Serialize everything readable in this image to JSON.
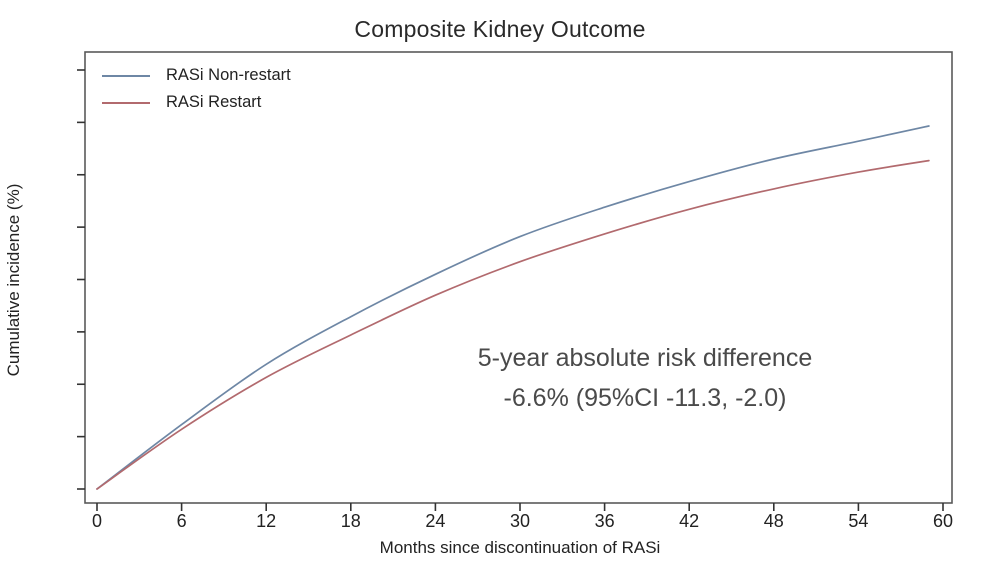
{
  "title": "Composite Kidney Outcome",
  "colors": {
    "non_restart": "#6e87a5",
    "restart": "#b26a6e",
    "frame": "#5a5a5a",
    "tick": "#333333",
    "annotation_text": "#4a4a4a"
  },
  "legend": {
    "items": [
      {
        "label": "RASi Non-restart",
        "series": "non_restart"
      },
      {
        "label": "RASi Restart",
        "series": "restart"
      }
    ]
  },
  "annotation": {
    "line1": "5-year absolute risk difference",
    "line2": "-6.6% (95%CI -11.3, -2.0)"
  },
  "axes": {
    "xlabel": "Months since discontinuation of RASi",
    "ylabel": "Cumulative incidence (%)"
  },
  "chart_data": {
    "type": "line",
    "title": "Composite Kidney Outcome",
    "xlabel": "Months since discontinuation of RASi",
    "ylabel": "Cumulative incidence (%)",
    "xlim": [
      0,
      60
    ],
    "ylim": [
      0,
      80
    ],
    "xticks": [
      0,
      6,
      12,
      18,
      24,
      30,
      36,
      42,
      48,
      54,
      60
    ],
    "yticks": [
      0,
      10,
      20,
      30,
      40,
      50,
      60,
      70,
      80
    ],
    "grid": false,
    "legend_position": "top-left",
    "x": [
      0,
      6,
      12,
      18,
      24,
      30,
      36,
      42,
      48,
      54,
      59
    ],
    "series": [
      {
        "name": "RASi Non-restart",
        "color": "#6e87a5",
        "values": [
          0,
          12.3,
          23.8,
          32.9,
          41.0,
          48.2,
          53.8,
          58.7,
          63.0,
          66.4,
          69.3
        ]
      },
      {
        "name": "RASi Restart",
        "color": "#b26a6e",
        "values": [
          0,
          11.4,
          21.3,
          29.4,
          37.0,
          43.4,
          48.7,
          53.4,
          57.3,
          60.5,
          62.7
        ]
      }
    ],
    "annotation": "5-year absolute risk difference -6.6% (95%CI -11.3, -2.0)"
  }
}
